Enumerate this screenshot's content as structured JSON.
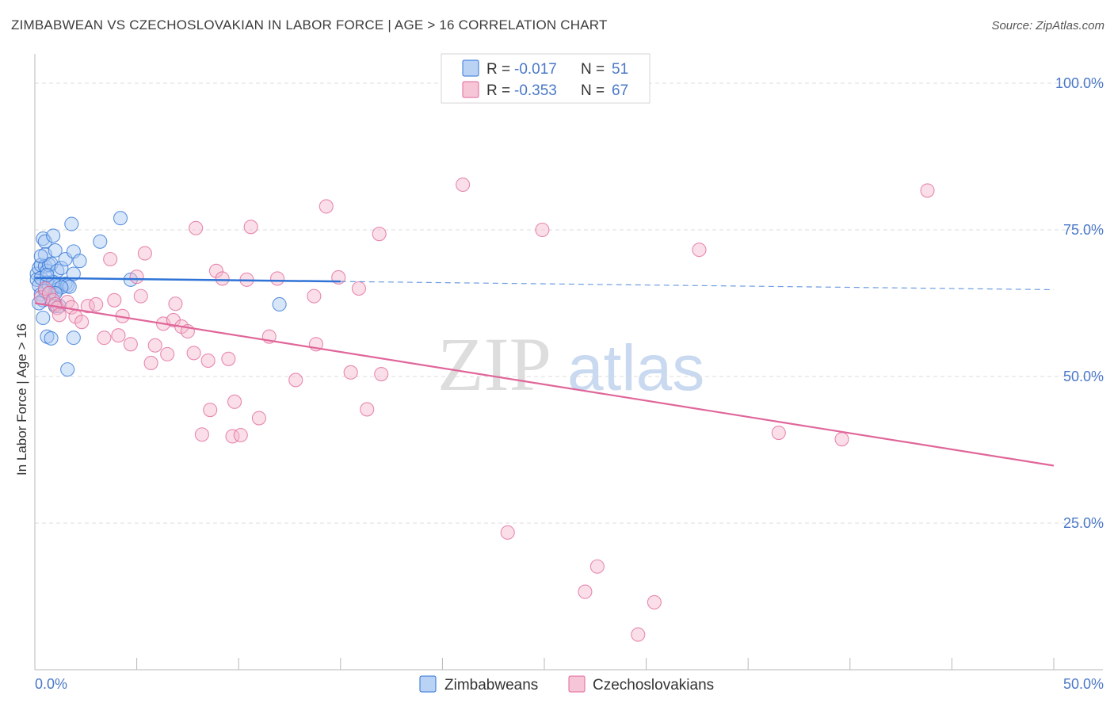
{
  "header": {
    "title": "ZIMBABWEAN VS CZECHOSLOVAKIAN IN LABOR FORCE | AGE > 16 CORRELATION CHART",
    "source": "Source: ZipAtlas.com"
  },
  "watermark": {
    "zip": "ZIP",
    "atlas": "atlas"
  },
  "colors": {
    "blue": "#2f73d6",
    "blue_fill": "#a9c8f2",
    "pink": "#e0669a",
    "pink_fill": "#f4b8cd",
    "axis_text": "#4a78c8",
    "grid": "#dcdcdc"
  },
  "legend": {
    "r_label": "R =",
    "n_label": "N =",
    "rows": [
      {
        "r": "-0.017",
        "n": "51"
      },
      {
        "r": "-0.353",
        "n": "67"
      }
    ]
  },
  "chart_data": {
    "type": "scatter",
    "xlabel": "",
    "ylabel": "In Labor Force | Age > 16",
    "xlim": [
      0,
      50
    ],
    "ylim": [
      0,
      105
    ],
    "x_tick_labels": [
      "0.0%",
      "50.0%"
    ],
    "y_ticks": [
      25,
      50,
      75,
      100
    ],
    "y_tick_labels": [
      "25.0%",
      "50.0%",
      "75.0%",
      "100.0%"
    ],
    "grid": true,
    "legend_position": "top-center",
    "series": [
      {
        "name": "Zimbabweans",
        "color": "blue",
        "r": -0.017,
        "n": 51,
        "trend": {
          "x0": 0,
          "y0": 66.8,
          "x1": 50,
          "y1": 64.8,
          "solid_until": 15
        },
        "points": [
          [
            0.1,
            67.5
          ],
          [
            0.1,
            66.5
          ],
          [
            0.2,
            68.5
          ],
          [
            0.2,
            65.5
          ],
          [
            0.3,
            69
          ],
          [
            0.3,
            66.8
          ],
          [
            0.3,
            64
          ],
          [
            0.4,
            63
          ],
          [
            0.4,
            73.5
          ],
          [
            0.5,
            73
          ],
          [
            0.5,
            70.8
          ],
          [
            0.5,
            68.8
          ],
          [
            0.6,
            68
          ],
          [
            0.6,
            66
          ],
          [
            0.7,
            69
          ],
          [
            0.7,
            65.5
          ],
          [
            0.8,
            64.5
          ],
          [
            0.8,
            69.2
          ],
          [
            0.9,
            74
          ],
          [
            1.0,
            71.5
          ],
          [
            1.0,
            65.5
          ],
          [
            1.1,
            68
          ],
          [
            1.1,
            64.8
          ],
          [
            1.2,
            65.5
          ],
          [
            0.4,
            60
          ],
          [
            0.6,
            56.8
          ],
          [
            0.8,
            56.5
          ],
          [
            1.0,
            62
          ],
          [
            1.2,
            62
          ],
          [
            1.3,
            68.5
          ],
          [
            1.5,
            70
          ],
          [
            1.5,
            65.8
          ],
          [
            1.6,
            65.5
          ],
          [
            1.7,
            65.3
          ],
          [
            1.8,
            76
          ],
          [
            1.9,
            71.3
          ],
          [
            1.9,
            67.5
          ],
          [
            2.2,
            69.7
          ],
          [
            3.2,
            73
          ],
          [
            4.2,
            77
          ],
          [
            4.7,
            66.5
          ],
          [
            12.0,
            62.3
          ],
          [
            1.6,
            51.2
          ],
          [
            1.9,
            56.6
          ],
          [
            0.2,
            62.5
          ],
          [
            0.5,
            64.6
          ],
          [
            0.9,
            66.1
          ],
          [
            1.3,
            65.2
          ],
          [
            0.6,
            67.3
          ],
          [
            0.3,
            70.5
          ],
          [
            1.0,
            64.2
          ]
        ]
      },
      {
        "name": "Czechoslovakians",
        "color": "pink",
        "r": -0.353,
        "n": 67,
        "trend": {
          "x0": 0,
          "y0": 62.5,
          "x1": 50,
          "y1": 34.8
        },
        "points": [
          [
            0.3,
            63.5
          ],
          [
            0.5,
            65
          ],
          [
            0.7,
            64.2
          ],
          [
            0.9,
            63
          ],
          [
            1.0,
            62.3
          ],
          [
            1.1,
            61.7
          ],
          [
            1.2,
            60.5
          ],
          [
            1.6,
            62.7
          ],
          [
            1.8,
            61.8
          ],
          [
            2.0,
            60.2
          ],
          [
            2.3,
            59.3
          ],
          [
            2.6,
            62
          ],
          [
            3.0,
            62.3
          ],
          [
            3.4,
            56.6
          ],
          [
            3.7,
            70
          ],
          [
            3.9,
            63
          ],
          [
            4.1,
            57
          ],
          [
            4.3,
            60.3
          ],
          [
            4.7,
            55.5
          ],
          [
            5.0,
            67
          ],
          [
            5.2,
            63.7
          ],
          [
            5.4,
            71
          ],
          [
            5.7,
            52.3
          ],
          [
            5.9,
            55.3
          ],
          [
            6.3,
            59
          ],
          [
            6.5,
            53.8
          ],
          [
            6.8,
            59.6
          ],
          [
            6.9,
            62.4
          ],
          [
            7.2,
            58.5
          ],
          [
            7.5,
            57.7
          ],
          [
            7.8,
            54
          ],
          [
            7.9,
            75.3
          ],
          [
            8.2,
            40.1
          ],
          [
            8.5,
            52.7
          ],
          [
            8.6,
            44.3
          ],
          [
            8.9,
            68
          ],
          [
            9.2,
            66.7
          ],
          [
            9.5,
            53
          ],
          [
            9.7,
            39.8
          ],
          [
            9.8,
            45.7
          ],
          [
            10.1,
            40
          ],
          [
            10.4,
            66.5
          ],
          [
            10.6,
            75.5
          ],
          [
            11.0,
            42.9
          ],
          [
            11.5,
            56.8
          ],
          [
            11.9,
            66.7
          ],
          [
            12.8,
            49.4
          ],
          [
            13.7,
            63.7
          ],
          [
            13.8,
            55.5
          ],
          [
            14.3,
            79
          ],
          [
            14.9,
            66.9
          ],
          [
            15.5,
            50.7
          ],
          [
            15.9,
            65
          ],
          [
            16.3,
            44.4
          ],
          [
            16.9,
            74.3
          ],
          [
            17.0,
            50.4
          ],
          [
            21.0,
            82.7
          ],
          [
            23.2,
            23.4
          ],
          [
            24.9,
            75
          ],
          [
            27.0,
            13.3
          ],
          [
            27.6,
            17.6
          ],
          [
            29.6,
            6.0
          ],
          [
            30.4,
            11.5
          ],
          [
            32.6,
            71.6
          ],
          [
            36.5,
            40.4
          ],
          [
            39.6,
            39.3
          ],
          [
            43.8,
            81.7
          ]
        ]
      }
    ]
  }
}
